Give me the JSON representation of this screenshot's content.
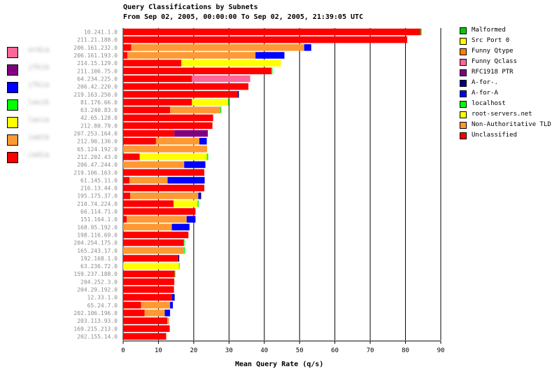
{
  "chart_data": {
    "type": "bar",
    "orientation": "horizontal",
    "stacked": true,
    "title": "Query Classifications by Subnets",
    "subtitle": "From Sep 02, 2005, 00:00:00 To Sep 02, 2005, 21:39:05 UTC",
    "xlabel": "Mean Query Rate (q/s)",
    "xlim": [
      0,
      90
    ],
    "xticks": [
      "0",
      "10",
      "20",
      "30",
      "40",
      "50",
      "60",
      "70",
      "80",
      "90"
    ],
    "grid": true,
    "categories": [
      "10.241.1.0",
      "211.21.188.0",
      "206.161.232.0",
      "206.161.193.0",
      "214.15.129.0",
      "211.106.75.0",
      "64.234.225.0",
      "206.42.220.0",
      "219.163.250.0",
      "81.176.66.0",
      "63.240.83.0",
      "42.65.128.0",
      "212.80.79.0",
      "207.253.164.0",
      "212.90.136.0",
      "65.124.192.0",
      "212.202.43.0",
      "206.47.244.0",
      "219.106.163.0",
      "61.145.11.0",
      "216.13.44.0",
      "195.175.37.0",
      "210.74.224.0",
      "66.114.71.0",
      "151.164.1.0",
      "168.95.192.0",
      "198.116.69.0",
      "204.254.175.0",
      "165.243.17.0",
      "192.168.1.0",
      "63.236.72.0",
      "159.237.188.0",
      "204.252.3.0",
      "204.29.192.0",
      "12.33.1.0",
      "65.24.7.0",
      "202.106.196.0",
      "203.113.93.0",
      "169.215.213.0",
      "202.155.14.0"
    ],
    "series": [
      {
        "name": "Unclassified",
        "color": "#ff0000",
        "values": [
          84.3,
          80.5,
          2.3,
          1.2,
          16.5,
          42,
          19.5,
          35.5,
          32.5,
          19.5,
          13.3,
          25.5,
          25.3,
          14.5,
          9.3,
          0,
          4.7,
          0,
          23,
          1.8,
          23,
          2,
          14.3,
          20.5,
          1,
          0,
          18.5,
          17.2,
          0,
          15.6,
          0,
          14.6,
          14.5,
          14.4,
          13.8,
          5.1,
          6.1,
          12.5,
          13.2,
          12.2
        ]
      },
      {
        "name": "Non-Authoritative TLD",
        "color": "#ff9933",
        "values": [
          0,
          0,
          49,
          36.3,
          0,
          0,
          0,
          0,
          0,
          0,
          14.2,
          0,
          0,
          0,
          12.3,
          23.8,
          0,
          17.3,
          0,
          10.8,
          0,
          19.3,
          0,
          0,
          17,
          13.8,
          0,
          0,
          17.2,
          0,
          0,
          0,
          0,
          0,
          0,
          8.2,
          5.7,
          0.5,
          0,
          0
        ]
      },
      {
        "name": "root-servers.net",
        "color": "#ffff00",
        "values": [
          0,
          0,
          0,
          0,
          28.2,
          0,
          0,
          0,
          0,
          10.2,
          0,
          0,
          0,
          0,
          0,
          0,
          19,
          0,
          0,
          0,
          0,
          0,
          6.8,
          0,
          0,
          0,
          0,
          0,
          0,
          0,
          15.8,
          0,
          0,
          0,
          0,
          0,
          0,
          0,
          0,
          0
        ]
      },
      {
        "name": "localhost",
        "color": "#00ff00",
        "values": [
          0.3,
          0,
          0,
          0,
          0,
          0.3,
          0,
          0,
          0,
          0.2,
          0.3,
          0,
          0,
          0,
          0,
          0,
          0.4,
          0,
          0,
          0,
          0,
          0,
          0.3,
          0,
          0,
          0,
          0,
          0.2,
          0.3,
          0,
          0.2,
          0.2,
          0,
          0,
          0,
          0,
          0,
          0,
          0,
          0
        ]
      },
      {
        "name": "A-for-A",
        "color": "#0000ff",
        "values": [
          0,
          0,
          2,
          8.2,
          0,
          0,
          0,
          0,
          0,
          0,
          0,
          0,
          0,
          0,
          2.1,
          0,
          0,
          6,
          0,
          10.5,
          0,
          0.5,
          0,
          0,
          2.5,
          5,
          0,
          0,
          0,
          0,
          0,
          0,
          0,
          0,
          0.5,
          0.8,
          1.5,
          0,
          0,
          0
        ]
      },
      {
        "name": "A-for-.",
        "color": "#000080",
        "values": [
          0,
          0,
          0,
          0,
          0,
          0,
          0,
          0,
          0.3,
          0,
          0,
          0,
          0,
          0,
          0,
          0,
          0,
          0,
          0,
          0,
          0,
          0.3,
          0,
          0,
          0,
          0,
          0,
          0,
          0,
          0.3,
          0,
          0,
          0,
          0,
          0.3,
          0,
          0,
          0,
          0,
          0
        ]
      },
      {
        "name": "RFC1918 PTR",
        "color": "#800080",
        "values": [
          0,
          0,
          0,
          0,
          0,
          0,
          0,
          0,
          0,
          0,
          0,
          0,
          0,
          9.5,
          0,
          0,
          0,
          0,
          0,
          0,
          0,
          0,
          0,
          0,
          0,
          0,
          0,
          0,
          0,
          0,
          0,
          0,
          0,
          0,
          0,
          0,
          0,
          0,
          0,
          0
        ]
      },
      {
        "name": "Funny Qclass",
        "color": "#ff6699",
        "values": [
          0,
          0,
          0,
          0,
          0,
          0,
          16.5,
          0,
          0,
          0,
          0,
          0,
          0,
          0,
          0,
          0,
          0,
          0,
          0,
          0,
          0,
          0,
          0,
          0,
          0,
          0,
          0,
          0,
          0,
          0,
          0,
          0,
          0,
          0,
          0,
          0,
          0,
          0,
          0,
          0
        ]
      },
      {
        "name": "Funny Qtype",
        "color": "#ff8000",
        "values": [
          0,
          0,
          0,
          0,
          0,
          0,
          0,
          0,
          0,
          0,
          0,
          0,
          0,
          0,
          0,
          0,
          0,
          0,
          0,
          0,
          0,
          0,
          0,
          0,
          0,
          0,
          0,
          0,
          0,
          0,
          0,
          0,
          0,
          0,
          0,
          0,
          0,
          0,
          0,
          0
        ]
      },
      {
        "name": "Src Port 0",
        "color": "#ffff00",
        "values": [
          0,
          0,
          0,
          0,
          0,
          0,
          0,
          0,
          0,
          0,
          0,
          0,
          0,
          0,
          0,
          0,
          0,
          0,
          0,
          0,
          0,
          0,
          0,
          0,
          0,
          0,
          0,
          0,
          0,
          0,
          0,
          0,
          0,
          0,
          0,
          0,
          0,
          0,
          0,
          0
        ]
      },
      {
        "name": "Malformed",
        "color": "#00cc00",
        "values": [
          0,
          0,
          0,
          0,
          0,
          0,
          0,
          0,
          0,
          0,
          0,
          0,
          0,
          0,
          0,
          0,
          0,
          0,
          0,
          0,
          0,
          0,
          0,
          0,
          0,
          0,
          0,
          0,
          0,
          0,
          0,
          0,
          0,
          0,
          0,
          0,
          0,
          0,
          0,
          0
        ]
      }
    ],
    "legend": [
      {
        "label": "Malformed",
        "color": "#00cc00"
      },
      {
        "label": "Src Port 0",
        "color": "#ffff00"
      },
      {
        "label": "Funny Qtype",
        "color": "#ff8000"
      },
      {
        "label": "Funny Qclass",
        "color": "#ff6699"
      },
      {
        "label": "RFC1918 PTR",
        "color": "#800080"
      },
      {
        "label": "A-for-.",
        "color": "#000080"
      },
      {
        "label": "A-for-A",
        "color": "#0000ff"
      },
      {
        "label": "localhost",
        "color": "#00ff00"
      },
      {
        "label": "root-servers.net",
        "color": "#ffff00"
      },
      {
        "label": "Non-Authoritative TLD",
        "color": "#ff9933"
      },
      {
        "label": "Unclassified",
        "color": "#ff0000"
      }
    ],
    "legend_placement": "right"
  },
  "side_legend": [
    {
      "color": "#ff6699",
      "label": "ordia"
    },
    {
      "color": "#800080",
      "label": "jfkib"
    },
    {
      "color": "#0000ff",
      "label": "jfkia"
    },
    {
      "color": "#00ff00",
      "label": "laxib"
    },
    {
      "color": "#ffff00",
      "label": "laxia"
    },
    {
      "color": "#ff9933",
      "label": "iadib"
    },
    {
      "color": "#ff0000",
      "label": "iadia"
    }
  ]
}
